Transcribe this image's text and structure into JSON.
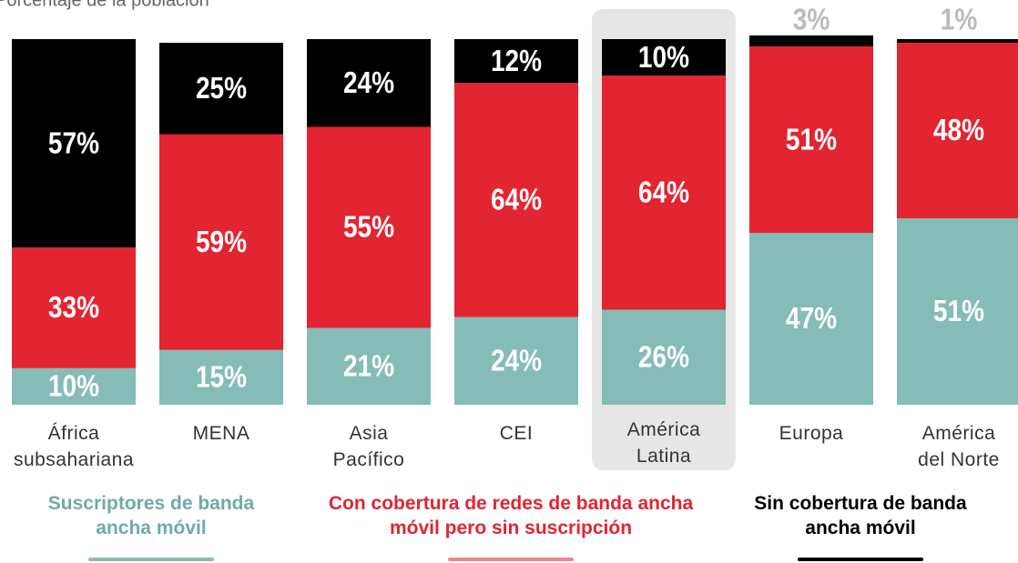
{
  "chart_data": {
    "type": "stacked_bar",
    "title": "Porcentaje de la población",
    "categories": [
      "África subsahariana",
      "MENA",
      "Asia Pacífico",
      "CEI",
      "América Latina",
      "Europa",
      "América del Norte"
    ],
    "series": [
      {
        "name": "Suscriptores de banda ancha móvil",
        "color": "#85bcb7",
        "text_color": "#6faba6",
        "underline_color": "#85bcb7",
        "values": [
          10,
          15,
          21,
          24,
          26,
          47,
          51
        ]
      },
      {
        "name": "Con cobertura de redes de banda ancha móvil pero sin suscripción",
        "color": "#e32431",
        "text_color": "#e32431",
        "underline_color": "#f0868c",
        "values": [
          33,
          59,
          55,
          64,
          64,
          51,
          48
        ]
      },
      {
        "name": "Sin cobertura de banda ancha móvil",
        "color": "#000000",
        "text_color": "#000000",
        "underline_color": "#000000",
        "values": [
          57,
          25,
          24,
          12,
          10,
          3,
          1
        ]
      }
    ],
    "value_labels": [
      [
        "10%",
        "15%",
        "21%",
        "24%",
        "26%",
        "47%",
        "51%"
      ],
      [
        "33%",
        "59%",
        "55%",
        "64%",
        "64%",
        "51%",
        "48%"
      ],
      [
        "57%",
        "25%",
        "24%",
        "12%",
        "10%",
        "3%",
        "1%"
      ]
    ],
    "ylim": [
      0,
      100
    ],
    "highlight_index": 4
  }
}
